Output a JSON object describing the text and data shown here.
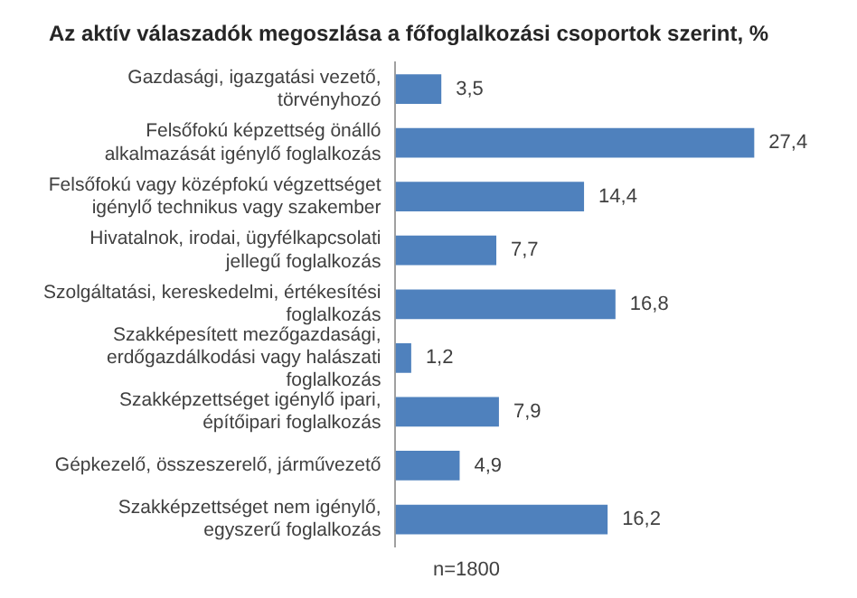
{
  "chart_data": {
    "type": "bar",
    "orientation": "horizontal",
    "title": "Az aktív válaszadók megoszlása a főfoglalkozási csoportok szerint, %",
    "categories": [
      "Gazdasági, igazgatási vezető, törvényhozó",
      "Felsőfokú képzettség önálló alkalmazását igénylő foglalkozás",
      "Felsőfokú vagy középfokú végzettséget igénylő technikus vagy szakember",
      "Hivatalnok, irodai, ügyfélkapcsolati jellegű foglalkozás",
      "Szolgáltatási, kereskedelmi, értékesítési foglalkozás",
      "Szakképesített mezőgazdasági, erdőgazdálkodási vagy halászati foglalkozás",
      "Szakképzettséget igénylő ipari, építőipari foglalkozás",
      "Gépkezelő, összeszerelő, járművezető",
      "Szakképzettséget nem igénylő, egyszerű foglalkozás"
    ],
    "values": [
      3.5,
      27.4,
      14.4,
      7.7,
      16.8,
      1.2,
      7.9,
      4.9,
      16.2
    ],
    "value_labels": [
      "3,5",
      "27,4",
      "14,4",
      "7,7",
      "16,8",
      "1,2",
      "7,9",
      "4,9",
      "16,2"
    ],
    "color": "#4f81bd",
    "annotations": [
      "n=1800"
    ]
  }
}
